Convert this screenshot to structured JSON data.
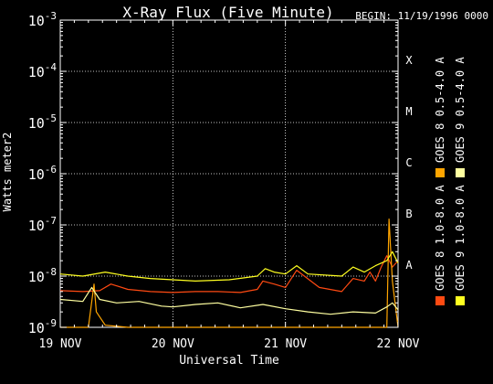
{
  "header": {
    "title": "X-Ray Flux (Five Minute)",
    "begin": "BEGIN: 11/19/1996 0000"
  },
  "chart_data": {
    "type": "line",
    "title": "X-Ray Flux (Five Minute)",
    "xlabel": "Universal Time",
    "ylabel": "Watts meter2",
    "y_scale": "log",
    "ylim": [
      1e-09,
      0.001
    ],
    "xlim": [
      0,
      3
    ],
    "x_unit": "days from 19 NOV 1996 00:00 UT",
    "x_ticks": [
      {
        "value": 0,
        "label": "19 NOV"
      },
      {
        "value": 1,
        "label": "20 NOV"
      },
      {
        "value": 2,
        "label": "21 NOV"
      },
      {
        "value": 3,
        "label": "22 NOV"
      }
    ],
    "y_ticks": [
      {
        "exp": -9,
        "label": "10",
        "sup": "-9"
      },
      {
        "exp": -8,
        "label": "10",
        "sup": "-8"
      },
      {
        "exp": -7,
        "label": "10",
        "sup": "-7"
      },
      {
        "exp": -6,
        "label": "10",
        "sup": "-6"
      },
      {
        "exp": -5,
        "label": "10",
        "sup": "-5"
      },
      {
        "exp": -4,
        "label": "10",
        "sup": "-4"
      },
      {
        "exp": -3,
        "label": "10",
        "sup": "-3"
      }
    ],
    "flare_classes": [
      {
        "label": "A",
        "exp": -8
      },
      {
        "label": "B",
        "exp": -7
      },
      {
        "label": "C",
        "exp": -6
      },
      {
        "label": "M",
        "exp": -5
      },
      {
        "label": "X",
        "exp": -4
      }
    ],
    "grid": true,
    "legend_position": "right, vertical",
    "series": [
      {
        "name": "GOES 8 1.0-8.0 A",
        "color": "#ff4a12",
        "x": [
          0,
          0.2,
          0.35,
          0.45,
          0.6,
          0.8,
          1.0,
          1.2,
          1.4,
          1.6,
          1.75,
          1.8,
          1.9,
          2.0,
          2.1,
          2.3,
          2.5,
          2.6,
          2.7,
          2.75,
          2.8,
          2.85,
          2.9,
          2.95,
          3.0
        ],
        "y": [
          5.2e-09,
          5e-09,
          5.2e-09,
          7e-09,
          5.5e-09,
          5e-09,
          4.8e-09,
          5e-09,
          5e-09,
          4.8e-09,
          5.5e-09,
          8e-09,
          7e-09,
          6e-09,
          1.3e-08,
          6e-09,
          5e-09,
          9e-09,
          8e-09,
          1.2e-08,
          8e-09,
          1.5e-08,
          2.5e-08,
          1.5e-08,
          2e-08
        ]
      },
      {
        "name": "GOES 8 0.5-4.0 A",
        "color": "#ffa500",
        "x": [
          0,
          0.25,
          0.3,
          0.32,
          0.4,
          0.6,
          1.0,
          1.5,
          2.0,
          2.9,
          2.92,
          2.95,
          3.0
        ],
        "y": [
          1e-09,
          1e-09,
          7e-09,
          2e-09,
          1.1e-09,
          1e-09,
          1e-09,
          1e-09,
          1e-09,
          1e-09,
          1.3e-07,
          8e-09,
          1e-09
        ]
      },
      {
        "name": "GOES 9 1.0-8.0 A",
        "color": "#ffff20",
        "x": [
          0,
          0.2,
          0.4,
          0.6,
          0.8,
          1.0,
          1.2,
          1.5,
          1.75,
          1.82,
          1.9,
          2.0,
          2.1,
          2.2,
          2.5,
          2.6,
          2.7,
          2.8,
          2.9,
          2.95,
          3.0
        ],
        "y": [
          1.1e-08,
          1e-08,
          1.2e-08,
          1e-08,
          9e-09,
          8.5e-09,
          8e-09,
          8.5e-09,
          1e-08,
          1.4e-08,
          1.2e-08,
          1.1e-08,
          1.6e-08,
          1.1e-08,
          1e-08,
          1.5e-08,
          1.2e-08,
          1.6e-08,
          2e-08,
          3e-08,
          1.8e-08
        ]
      },
      {
        "name": "GOES 9 0.5-4.0 A",
        "color": "#ffffa0",
        "x": [
          0,
          0.2,
          0.28,
          0.35,
          0.5,
          0.7,
          0.9,
          1.0,
          1.2,
          1.4,
          1.6,
          1.8,
          2.0,
          2.2,
          2.4,
          2.6,
          2.8,
          2.9,
          2.95,
          3.0
        ],
        "y": [
          3.5e-09,
          3.2e-09,
          6e-09,
          3.5e-09,
          3e-09,
          3.2e-09,
          2.6e-09,
          2.5e-09,
          2.8e-09,
          3e-09,
          2.4e-09,
          2.8e-09,
          2.3e-09,
          2e-09,
          1.8e-09,
          2e-09,
          1.9e-09,
          2.5e-09,
          3e-09,
          2.2e-09
        ]
      }
    ]
  }
}
